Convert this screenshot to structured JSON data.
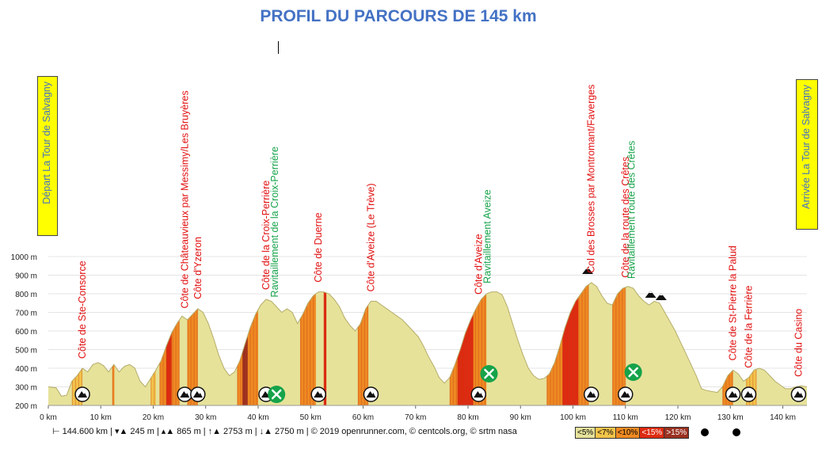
{
  "title": "PROFIL DU PARCOURS DE 145 km",
  "start_label": "Départ  La Tour de Salvagny",
  "finish_label": "Arrivée La Tour de Salvagny",
  "footer": {
    "distance": "144.600 km",
    "min_alt": "245 m",
    "max_alt": "865 m",
    "climb": "2753 m",
    "descent": "2750 m",
    "credits": "© 2019 openrunner.com, © centcols.org, © srtm nasa",
    "sep": "|"
  },
  "legend": [
    {
      "label": "<5%",
      "color": "#e6e29a"
    },
    {
      "label": "<7%",
      "color": "#f2c44a"
    },
    {
      "label": "<10%",
      "color": "#ee8a22"
    },
    {
      "label": "<15%",
      "color": "#dd2a10"
    },
    {
      "label": ">15%",
      "color": "#9a3020"
    }
  ],
  "colors": {
    "climb_label": "#e21010",
    "food_label": "#16a34a",
    "title": "#4472c4"
  },
  "chart_data": {
    "type": "area",
    "title": "PROFIL DU PARCOURS DE 145 km",
    "xlabel": "",
    "ylabel": "",
    "x_unit": "km",
    "y_unit": "m",
    "xlim": [
      0,
      144.6
    ],
    "ylim": [
      200,
      1000
    ],
    "x_ticks": [
      "0 km",
      "10 km",
      "20 km",
      "30 km",
      "40 km",
      "50 km",
      "60 km",
      "70 km",
      "80 km",
      "90 km",
      "100 km",
      "110 km",
      "120 km",
      "130 km",
      "140 km"
    ],
    "y_ticks": [
      "200 m",
      "300 m",
      "400 m",
      "500 m",
      "600 m",
      "700 m",
      "800 m",
      "900 m",
      "1000 m"
    ],
    "profile": [
      [
        0,
        300
      ],
      [
        1.5,
        295
      ],
      [
        2.5,
        250
      ],
      [
        3.5,
        255
      ],
      [
        4.5,
        330
      ],
      [
        5.5,
        360
      ],
      [
        6.5,
        400
      ],
      [
        7.5,
        380
      ],
      [
        8.5,
        420
      ],
      [
        9.5,
        430
      ],
      [
        10.5,
        415
      ],
      [
        11.5,
        380
      ],
      [
        12.5,
        420
      ],
      [
        13.5,
        380
      ],
      [
        14.5,
        410
      ],
      [
        15.5,
        420
      ],
      [
        16.5,
        400
      ],
      [
        17.5,
        330
      ],
      [
        18.5,
        300
      ],
      [
        19.5,
        345
      ],
      [
        20.5,
        390
      ],
      [
        21.5,
        440
      ],
      [
        22.5,
        520
      ],
      [
        23.5,
        590
      ],
      [
        24.5,
        640
      ],
      [
        25.5,
        680
      ],
      [
        26.5,
        660
      ],
      [
        27.5,
        690
      ],
      [
        28.5,
        720
      ],
      [
        29.5,
        700
      ],
      [
        30.5,
        640
      ],
      [
        31.5,
        560
      ],
      [
        32.5,
        470
      ],
      [
        33.5,
        400
      ],
      [
        34.5,
        360
      ],
      [
        35.5,
        380
      ],
      [
        36.5,
        440
      ],
      [
        37.5,
        530
      ],
      [
        38.5,
        620
      ],
      [
        39.5,
        690
      ],
      [
        40.5,
        740
      ],
      [
        41.5,
        770
      ],
      [
        42.5,
        760
      ],
      [
        43.5,
        730
      ],
      [
        44.5,
        700
      ],
      [
        45.5,
        720
      ],
      [
        46.5,
        700
      ],
      [
        47.5,
        640
      ],
      [
        48.5,
        690
      ],
      [
        49.5,
        750
      ],
      [
        50.5,
        790
      ],
      [
        51.5,
        810
      ],
      [
        52.5,
        810
      ],
      [
        53.5,
        800
      ],
      [
        54.5,
        770
      ],
      [
        55.5,
        730
      ],
      [
        56.5,
        670
      ],
      [
        57.5,
        630
      ],
      [
        58.5,
        600
      ],
      [
        59.5,
        640
      ],
      [
        60.5,
        720
      ],
      [
        61.5,
        760
      ],
      [
        62.5,
        760
      ],
      [
        63.5,
        740
      ],
      [
        64.5,
        720
      ],
      [
        65.5,
        700
      ],
      [
        66.5,
        680
      ],
      [
        67.5,
        660
      ],
      [
        68.5,
        630
      ],
      [
        69.5,
        600
      ],
      [
        70.5,
        570
      ],
      [
        71.5,
        520
      ],
      [
        72.5,
        460
      ],
      [
        73.5,
        410
      ],
      [
        74.5,
        350
      ],
      [
        75.5,
        320
      ],
      [
        76.5,
        350
      ],
      [
        77.5,
        420
      ],
      [
        78.5,
        500
      ],
      [
        79.5,
        590
      ],
      [
        80.5,
        660
      ],
      [
        81.5,
        720
      ],
      [
        82.5,
        770
      ],
      [
        83.5,
        800
      ],
      [
        84.5,
        810
      ],
      [
        85.5,
        810
      ],
      [
        86.5,
        795
      ],
      [
        87.5,
        730
      ],
      [
        88.5,
        640
      ],
      [
        89.5,
        550
      ],
      [
        90.5,
        470
      ],
      [
        91.5,
        400
      ],
      [
        92.5,
        360
      ],
      [
        93.5,
        340
      ],
      [
        94.5,
        345
      ],
      [
        95.5,
        370
      ],
      [
        96.5,
        430
      ],
      [
        97.5,
        520
      ],
      [
        98.5,
        620
      ],
      [
        99.5,
        700
      ],
      [
        100.5,
        760
      ],
      [
        101.5,
        800
      ],
      [
        102.5,
        840
      ],
      [
        103.5,
        860
      ],
      [
        104.5,
        840
      ],
      [
        105.5,
        790
      ],
      [
        106.5,
        750
      ],
      [
        107.5,
        740
      ],
      [
        108.5,
        800
      ],
      [
        109.5,
        830
      ],
      [
        110.5,
        840
      ],
      [
        111.5,
        830
      ],
      [
        112.5,
        790
      ],
      [
        113.5,
        760
      ],
      [
        114.5,
        740
      ],
      [
        115.5,
        760
      ],
      [
        116.5,
        750
      ],
      [
        117.5,
        700
      ],
      [
        118.5,
        650
      ],
      [
        119.5,
        600
      ],
      [
        120.5,
        540
      ],
      [
        121.5,
        480
      ],
      [
        122.5,
        420
      ],
      [
        123.5,
        360
      ],
      [
        124.5,
        290
      ],
      [
        125.5,
        280
      ],
      [
        126.5,
        275
      ],
      [
        127.5,
        270
      ],
      [
        128.5,
        300
      ],
      [
        129.5,
        360
      ],
      [
        130.5,
        390
      ],
      [
        131.5,
        370
      ],
      [
        132.5,
        330
      ],
      [
        133.5,
        350
      ],
      [
        134.5,
        390
      ],
      [
        135.5,
        400
      ],
      [
        136.5,
        390
      ],
      [
        137.5,
        360
      ],
      [
        138.5,
        330
      ],
      [
        139.5,
        310
      ],
      [
        140.5,
        290
      ],
      [
        141.5,
        290
      ],
      [
        142.5,
        300
      ],
      [
        143.5,
        305
      ],
      [
        144.6,
        300
      ]
    ],
    "steepness_bands": [
      [
        4.5,
        6.5,
        "<7%"
      ],
      [
        12.2,
        12.6,
        "<10%"
      ],
      [
        19.5,
        20.5,
        "<7%"
      ],
      [
        21.2,
        25,
        "<10%"
      ],
      [
        22.5,
        23.5,
        "<15%"
      ],
      [
        26.5,
        28.5,
        "<10%"
      ],
      [
        36,
        40,
        "<10%"
      ],
      [
        37,
        38,
        ">15%"
      ],
      [
        48,
        51,
        "<10%"
      ],
      [
        52.5,
        53,
        "<15%"
      ],
      [
        59,
        61,
        "<10%"
      ],
      [
        76.5,
        83.5,
        "<10%"
      ],
      [
        78,
        81,
        "<15%"
      ],
      [
        95,
        103,
        "<10%"
      ],
      [
        98,
        101,
        "<15%"
      ],
      [
        107.5,
        110,
        "<10%"
      ],
      [
        128.5,
        130.5,
        "<10%"
      ],
      [
        133,
        135,
        "<7%"
      ]
    ],
    "climbs": [
      {
        "name": "Côte de Ste-Consorce",
        "km": 6.5
      },
      {
        "name": "Côte de Châteauvieux par Messimy/Les Bruyères",
        "km": 26.0
      },
      {
        "name": "Côte d'Yzeron",
        "km": 28.5
      },
      {
        "name": "Côte de la Croix-Perrière",
        "km": 41.5
      },
      {
        "name": "Côte de Duerne",
        "km": 51.5
      },
      {
        "name": "Côte d'Aveize (Le Trève)",
        "km": 61.5
      },
      {
        "name": "Côte d'Aveize",
        "km": 82.0
      },
      {
        "name": "Col des Brosses par Montromant/Faverges",
        "km": 103.5
      },
      {
        "name": "Côte de la route des Crêtes",
        "km": 110.0
      },
      {
        "name": "Côte de St-Pierre la Palud",
        "km": 130.5
      },
      {
        "name": "Côte de la Ferrière",
        "km": 133.5
      },
      {
        "name": "Côte du Casino",
        "km": 143.0
      }
    ],
    "feed_stations": [
      {
        "name": "Ravitaillement de la Croix-Perrière",
        "km": 43.5
      },
      {
        "name": "Ravitaillement Aveize",
        "km": 84.0
      },
      {
        "name": "Ravitaillement route des Crêtes",
        "km": 111.5
      }
    ]
  }
}
